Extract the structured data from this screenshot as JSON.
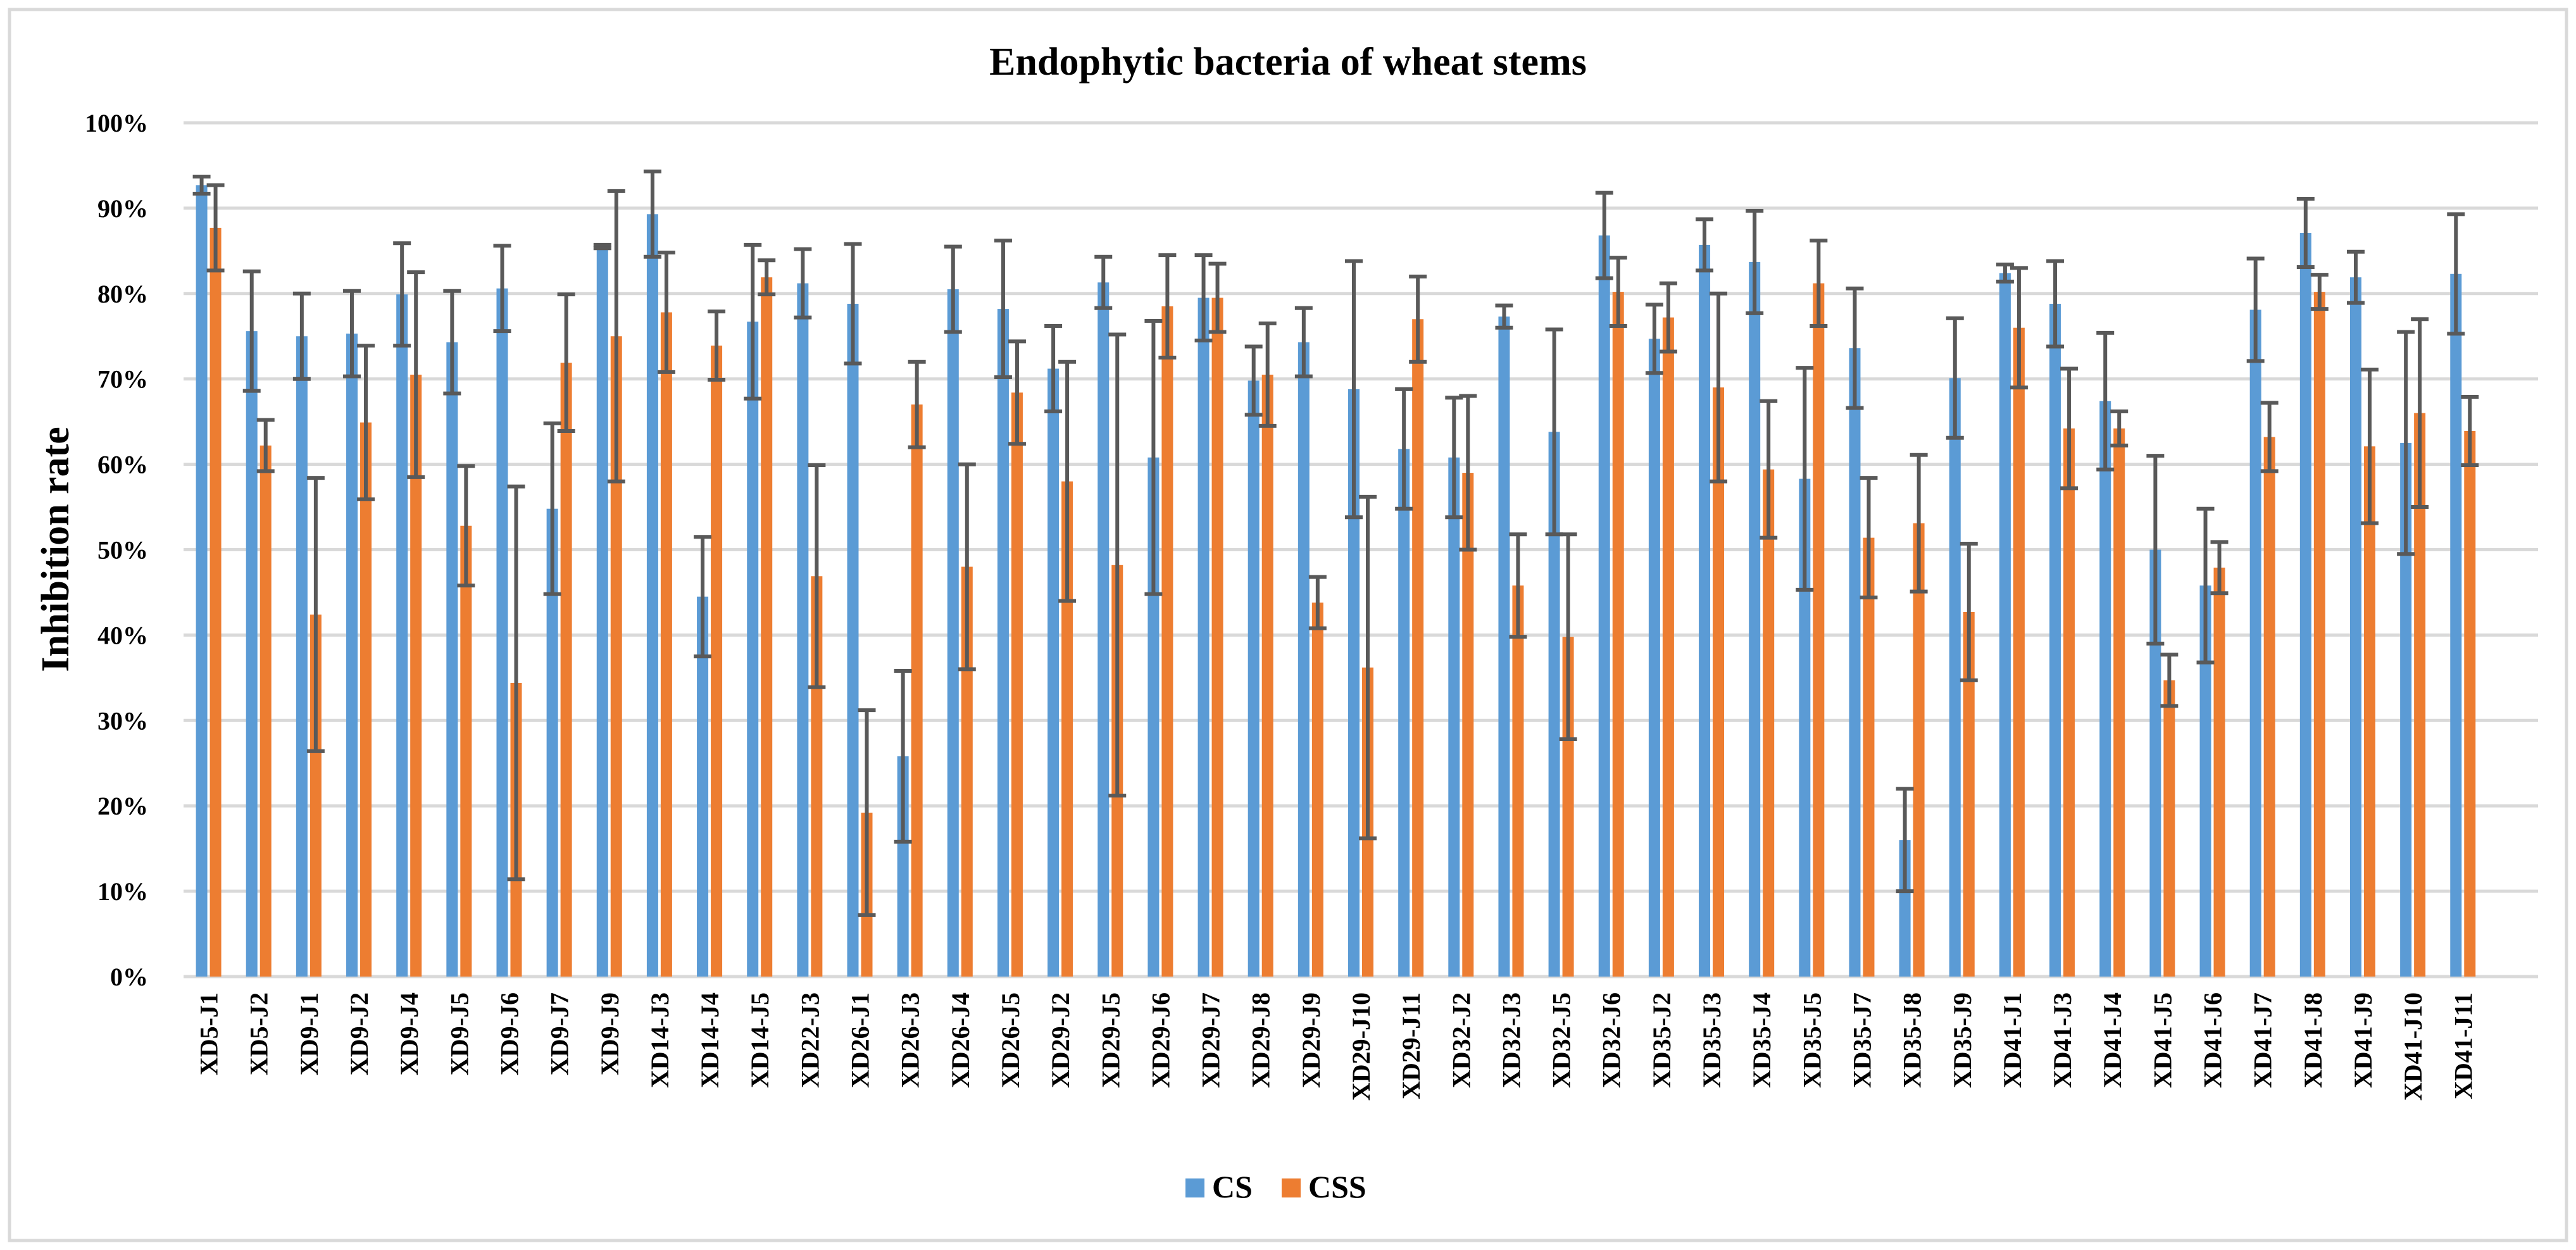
{
  "chart_data": {
    "type": "bar",
    "title": "Endophytic bacteria of wheat stems",
    "xlabel": "",
    "ylabel": "Inhibition rate",
    "ylim": [
      0,
      100
    ],
    "yticks": [
      "0%",
      "10%",
      "20%",
      "30%",
      "40%",
      "50%",
      "60%",
      "70%",
      "80%",
      "90%",
      "100%"
    ],
    "grid": true,
    "legend_position": "bottom",
    "error_bars": true,
    "categories": [
      "XD5-J1",
      "XD5-J2",
      "XD9-J1",
      "XD9-J2",
      "XD9-J4",
      "XD9-J5",
      "XD9-J6",
      "XD9-J7",
      "XD9-J9",
      "XD14-J3",
      "XD14-J4",
      "XD14-J5",
      "XD22-J3",
      "XD26-J1",
      "XD26-J3",
      "XD26-J4",
      "XD26-J5",
      "XD29-J2",
      "XD29-J5",
      "XD29-J6",
      "XD29-J7",
      "XD29-J8",
      "XD29-J9",
      "XD29-J10",
      "XD29-J11",
      "XD32-J2",
      "XD32-J3",
      "XD32-J5",
      "XD32-J6",
      "XD35-J2",
      "XD35-J3",
      "XD35-J4",
      "XD35-J5",
      "XD35-J7",
      "XD35-J8",
      "XD35-J9",
      "XD41-J1",
      "XD41-J3",
      "XD41-J4",
      "XD41-J5",
      "XD41-J6",
      "XD41-J7",
      "XD41-J8",
      "XD41-J9",
      "XD41-J10",
      "XD41-J11"
    ],
    "series": [
      {
        "name": "CS",
        "color": "#5b9bd5",
        "values": [
          92.7,
          75.6,
          75.0,
          75.3,
          79.9,
          74.3,
          80.6,
          54.8,
          85.5,
          89.3,
          44.5,
          76.7,
          81.2,
          78.8,
          25.8,
          80.5,
          78.2,
          71.2,
          81.3,
          60.8,
          79.5,
          69.8,
          74.3,
          68.8,
          61.8,
          60.8,
          77.3,
          63.8,
          86.8,
          74.7,
          85.7,
          83.7,
          58.3,
          73.6,
          16.0,
          70.1,
          82.4,
          78.8,
          67.4,
          50.0,
          45.8,
          78.1,
          87.1,
          81.9,
          62.5,
          82.3
        ],
        "errors": [
          1.0,
          7.0,
          5.0,
          5.0,
          6.0,
          6.0,
          5.0,
          10.0,
          0.2,
          5.0,
          7.0,
          9.0,
          4.0,
          7.0,
          10.0,
          5.0,
          8.0,
          5.0,
          3.0,
          16.0,
          5.0,
          4.0,
          4.0,
          15.0,
          7.0,
          7.0,
          1.3,
          12.0,
          5.0,
          4.0,
          3.0,
          6.0,
          13.0,
          7.0,
          6.0,
          7.0,
          1.0,
          5.0,
          8.0,
          11.0,
          9.0,
          6.0,
          4.0,
          3.0,
          13.0,
          7.0
        ]
      },
      {
        "name": "CSS",
        "color": "#ed7d31",
        "values": [
          87.7,
          62.2,
          42.4,
          64.9,
          70.5,
          52.8,
          34.4,
          71.9,
          75.0,
          77.8,
          73.9,
          81.9,
          46.9,
          19.2,
          67.0,
          48.0,
          68.4,
          58.0,
          48.2,
          78.5,
          79.5,
          70.5,
          43.8,
          36.2,
          77.0,
          59.0,
          45.8,
          39.8,
          80.2,
          77.2,
          69.0,
          59.4,
          81.2,
          51.4,
          53.1,
          42.7,
          76.0,
          64.2,
          64.2,
          34.7,
          47.9,
          63.2,
          80.2,
          62.1,
          66.0,
          63.9
        ],
        "errors": [
          5.0,
          3.0,
          16.0,
          9.0,
          12.0,
          7.0,
          23.0,
          8.0,
          17.0,
          7.0,
          4.0,
          2.0,
          13.0,
          12.0,
          5.0,
          12.0,
          6.0,
          14.0,
          27.0,
          6.0,
          4.0,
          6.0,
          3.0,
          20.0,
          5.0,
          9.0,
          6.0,
          12.0,
          4.0,
          4.0,
          11.0,
          8.0,
          5.0,
          7.0,
          8.0,
          8.0,
          7.0,
          7.0,
          2.0,
          3.0,
          3.0,
          4.0,
          2.0,
          9.0,
          11.0,
          4.0
        ]
      }
    ]
  }
}
